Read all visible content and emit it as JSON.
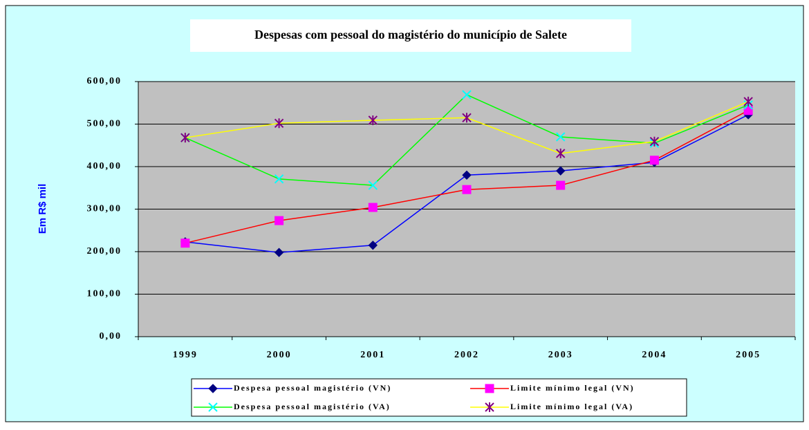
{
  "chart_data": {
    "type": "line",
    "title": "Despesas com pessoal do magistério do município de Salete",
    "y_label": "Em R$ mil",
    "categories": [
      "1999",
      "2000",
      "2001",
      "2002",
      "2003",
      "2004",
      "2005"
    ],
    "series": [
      {
        "name": "Despesa pessoal magistério (VN)",
        "color": "#0000ff",
        "marker_color": "#000080",
        "marker": "diamond",
        "values": [
          223,
          198,
          215,
          380,
          390,
          410,
          522
        ]
      },
      {
        "name": "Limite mínimo legal (VN)",
        "color": "#ff0000",
        "marker_color": "#ff00ff",
        "marker": "square",
        "values": [
          220,
          273,
          304,
          346,
          356,
          415,
          532
        ]
      },
      {
        "name": "Despesa pessoal magistério (VA)",
        "color": "#00ff00",
        "marker_color": "#00ffff",
        "marker": "x",
        "values": [
          468,
          371,
          356,
          569,
          470,
          455,
          545
        ]
      },
      {
        "name": "Limite mínimo legal (VA)",
        "color": "#ffff00",
        "marker_color": "#800080",
        "marker": "star",
        "values": [
          468,
          502,
          509,
          515,
          431,
          459,
          553
        ]
      }
    ],
    "ylim": [
      0,
      600
    ],
    "yticks": [
      {
        "value": 0,
        "label": "0,00"
      },
      {
        "value": 100,
        "label": "100,00"
      },
      {
        "value": 200,
        "label": "200,00"
      },
      {
        "value": 300,
        "label": "300,00"
      },
      {
        "value": 400,
        "label": "400,00"
      },
      {
        "value": 500,
        "label": "500,00"
      },
      {
        "value": 600,
        "label": "600,00"
      }
    ],
    "grid": true,
    "legend": "bottom"
  }
}
